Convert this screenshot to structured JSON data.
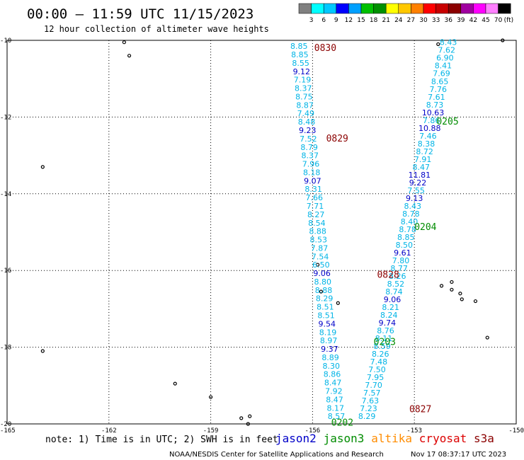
{
  "header": {
    "title": "00:00 – 11:59 UTC 11/15/2023",
    "subtitle": "12 hour collection of altimeter wave heights"
  },
  "legend": {
    "labels": [
      "3",
      "6",
      "9",
      "12",
      "15",
      "18",
      "21",
      "24",
      "27",
      "30",
      "33",
      "36",
      "39",
      "42",
      "45",
      "70"
    ],
    "unit": "(ft)",
    "colors": [
      "#808080",
      "#00ffff",
      "#00c8ff",
      "#0000ff",
      "#00a0ff",
      "#00c000",
      "#009000",
      "#ffff00",
      "#ffc800",
      "#ff8000",
      "#ff0000",
      "#c80000",
      "#8b0000",
      "#a000a0",
      "#ff00ff",
      "#ff80ff",
      "#000000"
    ]
  },
  "notes": {
    "note": "note: 1) Time is in UTC; 2) SWH is in feet",
    "credit": "NOAA/NESDIS Center for Satellite Applications and Research",
    "timestamp": "Nov 17 08:37:17 UTC 2023"
  },
  "satellites": [
    {
      "name": "jason2",
      "color": "#0000c8"
    },
    {
      "name": "jason3",
      "color": "#008c00"
    },
    {
      "name": "altika",
      "color": "#ff8c00"
    },
    {
      "name": "cryosat",
      "color": "#dc0000"
    },
    {
      "name": "s3a",
      "color": "#8b0000"
    }
  ],
  "chart_data": {
    "type": "scatter",
    "xlim": [
      -165,
      -150
    ],
    "ylim": [
      -20,
      -10
    ],
    "x_ticks": [
      "-165",
      "-162",
      "-159",
      "-156",
      "-153",
      "-150"
    ],
    "y_ticks": [
      "-10",
      "-12",
      "-14",
      "-16",
      "-18",
      "-20"
    ],
    "grid": true,
    "tracks": [
      {
        "color": "#00b4e6",
        "start": [
          -156.4,
          -10.15
        ],
        "end": [
          -155.3,
          -19.8
        ],
        "values": [
          "8.85",
          "8.85",
          "8.55",
          "9.12",
          "7.19",
          "8.37",
          "8.75",
          "8.87",
          "7.49",
          "8.48",
          "9.23",
          "7.52",
          "8.79",
          "8.37",
          "7.96",
          "8.18",
          "9.07",
          "8.31",
          "7.66",
          "7.71",
          "8.27",
          "8.54",
          "8.88",
          "8.53",
          "7.87",
          "7.54",
          "6.50",
          "9.06",
          "8.80",
          "8.88",
          "8.29",
          "8.51",
          "8.51",
          "9.54",
          "8.19",
          "8.97",
          "9.37",
          "8.89",
          "8.30",
          "8.86",
          "8.47",
          "7.92",
          "8.47",
          "8.17",
          "8.57"
        ]
      },
      {
        "color": "#00b4e6",
        "start": [
          -152.0,
          -10.05
        ],
        "end": [
          -154.4,
          -19.8
        ],
        "values": [
          "8.43",
          "7.62",
          "6.90",
          "8.41",
          "7.69",
          "8.65",
          "7.76",
          "7.61",
          "8.73",
          "10.63",
          "7.86",
          "10.88",
          "7.46",
          "8.38",
          "8.72",
          "7.91",
          "8.47",
          "11.81",
          "9.22",
          "7.55",
          "9.13",
          "8.43",
          "8.78",
          "8.40",
          "8.78",
          "8.85",
          "8.50",
          "9.61",
          "7.80",
          "8.77",
          "8.26",
          "8.52",
          "8.74",
          "9.06",
          "8.21",
          "8.24",
          "9.74",
          "8.76",
          "8.11",
          "8.59",
          "8.26",
          "7.48",
          "7.50",
          "7.95",
          "7.70",
          "7.57",
          "7.63",
          "7.23",
          "8.29"
        ]
      }
    ],
    "passes": [
      {
        "label": "0830",
        "x": -155.95,
        "y": -10.18,
        "color": "#8b0000"
      },
      {
        "label": "0829",
        "x": -155.6,
        "y": -12.55,
        "color": "#8b0000"
      },
      {
        "label": "0828",
        "x": -154.1,
        "y": -16.1,
        "color": "#8b0000"
      },
      {
        "label": "0827",
        "x": -153.15,
        "y": -19.6,
        "color": "#8b0000"
      },
      {
        "label": "0205",
        "x": -152.35,
        "y": -12.1,
        "color": "#008c00"
      },
      {
        "label": "0204",
        "x": -153.0,
        "y": -14.85,
        "color": "#008c00"
      },
      {
        "label": "0203",
        "x": -154.2,
        "y": -17.85,
        "color": "#008c00"
      },
      {
        "label": "0202",
        "x": -155.45,
        "y": -19.95,
        "color": "#008c00"
      }
    ],
    "islands": [
      {
        "x": -161.55,
        "y": -10.05
      },
      {
        "x": -161.4,
        "y": -10.4
      },
      {
        "x": -163.95,
        "y": -13.3
      },
      {
        "x": -163.95,
        "y": -18.1
      },
      {
        "x": -160.05,
        "y": -18.95
      },
      {
        "x": -159.0,
        "y": -19.3
      },
      {
        "x": -158.1,
        "y": -19.85
      },
      {
        "x": -157.85,
        "y": -19.8
      },
      {
        "x": -157.9,
        "y": -20.0
      },
      {
        "x": -152.2,
        "y": -16.4
      },
      {
        "x": -151.9,
        "y": -16.3
      },
      {
        "x": -151.9,
        "y": -16.5
      },
      {
        "x": -151.65,
        "y": -16.6
      },
      {
        "x": -151.6,
        "y": -16.75
      },
      {
        "x": -151.2,
        "y": -16.8
      },
      {
        "x": -150.85,
        "y": -17.75
      },
      {
        "x": -152.3,
        "y": -10.1
      },
      {
        "x": -150.4,
        "y": -10.0
      },
      {
        "x": -155.75,
        "y": -16.55
      },
      {
        "x": -155.25,
        "y": -16.85
      },
      {
        "x": -155.85,
        "y": -15.85
      }
    ]
  }
}
